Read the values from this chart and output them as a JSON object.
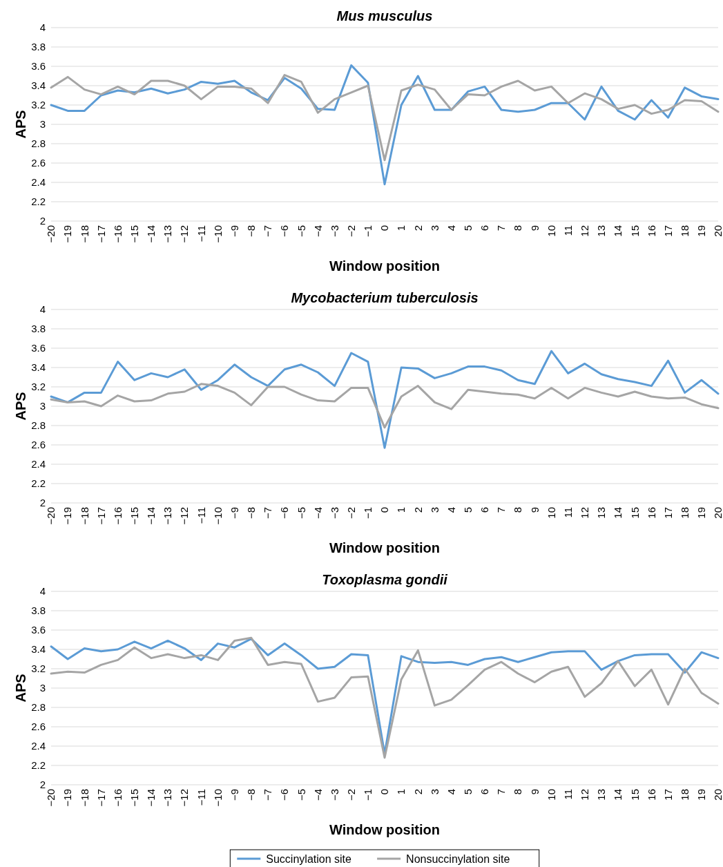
{
  "chart_data": [
    {
      "type": "line",
      "title": "Mus musculus",
      "xlabel": "Window position",
      "ylabel": "APS",
      "categories": [
        "−20",
        "−19",
        "−18",
        "−17",
        "−16",
        "−15",
        "−14",
        "−13",
        "−12",
        "−11",
        "−10",
        "−9",
        "−8",
        "−7",
        "−6",
        "−5",
        "−4",
        "−3",
        "−2",
        "−1",
        "0",
        "1",
        "2",
        "3",
        "4",
        "5",
        "6",
        "7",
        "8",
        "9",
        "10",
        "11",
        "12",
        "13",
        "14",
        "15",
        "16",
        "17",
        "18",
        "19",
        "20"
      ],
      "ylim": [
        2,
        4
      ],
      "yticks": [
        2,
        2.2,
        2.4,
        2.6,
        2.8,
        3,
        3.2,
        3.4,
        3.6,
        3.8,
        4
      ],
      "grid": "y",
      "series": [
        {
          "color": "#5b9bd5",
          "values": [
            3.2,
            3.14,
            3.14,
            3.3,
            3.35,
            3.33,
            3.37,
            3.32,
            3.36,
            3.44,
            3.42,
            3.45,
            3.33,
            3.25,
            3.48,
            3.37,
            3.16,
            3.15,
            3.61,
            3.43,
            2.38,
            3.2,
            3.5,
            3.15,
            3.15,
            3.34,
            3.39,
            3.15,
            3.13,
            3.15,
            3.22,
            3.22,
            3.05,
            3.39,
            3.14,
            3.05,
            3.25,
            3.07,
            3.38,
            3.29,
            3.26
          ]
        },
        {
          "color": "#a5a5a5",
          "values": [
            3.38,
            3.49,
            3.36,
            3.31,
            3.39,
            3.31,
            3.45,
            3.45,
            3.4,
            3.26,
            3.39,
            3.39,
            3.37,
            3.22,
            3.51,
            3.44,
            3.12,
            3.26,
            3.33,
            3.4,
            2.63,
            3.35,
            3.41,
            3.36,
            3.15,
            3.31,
            3.3,
            3.39,
            3.45,
            3.35,
            3.39,
            3.22,
            3.32,
            3.26,
            3.16,
            3.2,
            3.11,
            3.15,
            3.25,
            3.24,
            3.13
          ]
        }
      ]
    },
    {
      "type": "line",
      "title": "Mycobacterium tuberculosis",
      "xlabel": "Window position",
      "ylabel": "APS",
      "categories": [
        "−20",
        "−19",
        "−18",
        "−17",
        "−16",
        "−15",
        "−14",
        "−13",
        "−12",
        "−11",
        "−10",
        "−9",
        "−8",
        "−7",
        "−6",
        "−5",
        "−4",
        "−3",
        "−2",
        "−1",
        "0",
        "1",
        "2",
        "3",
        "4",
        "5",
        "6",
        "7",
        "8",
        "9",
        "10",
        "11",
        "12",
        "13",
        "14",
        "15",
        "16",
        "17",
        "18",
        "19",
        "20"
      ],
      "ylim": [
        2,
        4
      ],
      "yticks": [
        2,
        2.2,
        2.4,
        2.6,
        2.8,
        3,
        3.2,
        3.4,
        3.6,
        3.8,
        4
      ],
      "grid": "y",
      "series": [
        {
          "color": "#5b9bd5",
          "values": [
            3.1,
            3.04,
            3.14,
            3.14,
            3.46,
            3.27,
            3.34,
            3.3,
            3.38,
            3.17,
            3.27,
            3.43,
            3.3,
            3.21,
            3.38,
            3.43,
            3.35,
            3.21,
            3.55,
            3.46,
            2.57,
            3.4,
            3.39,
            3.29,
            3.34,
            3.41,
            3.41,
            3.37,
            3.27,
            3.23,
            3.57,
            3.34,
            3.44,
            3.33,
            3.28,
            3.25,
            3.21,
            3.47,
            3.14,
            3.27,
            3.13
          ]
        },
        {
          "color": "#a5a5a5",
          "values": [
            3.07,
            3.04,
            3.05,
            3.0,
            3.11,
            3.05,
            3.06,
            3.13,
            3.15,
            3.23,
            3.21,
            3.14,
            3.01,
            3.2,
            3.2,
            3.12,
            3.06,
            3.05,
            3.19,
            3.19,
            2.78,
            3.1,
            3.21,
            3.04,
            2.97,
            3.17,
            3.15,
            3.13,
            3.12,
            3.08,
            3.19,
            3.08,
            3.19,
            3.14,
            3.1,
            3.15,
            3.1,
            3.08,
            3.09,
            3.02,
            2.98
          ]
        }
      ]
    },
    {
      "type": "line",
      "title": "Toxoplasma gondii",
      "xlabel": "Window position",
      "ylabel": "APS",
      "categories": [
        "−20",
        "−19",
        "−18",
        "−17",
        "−16",
        "−15",
        "−14",
        "−13",
        "−12",
        "−11",
        "−10",
        "−9",
        "−8",
        "−7",
        "−6",
        "−5",
        "−4",
        "−3",
        "−2",
        "−1",
        "0",
        "1",
        "2",
        "3",
        "4",
        "5",
        "6",
        "7",
        "8",
        "9",
        "10",
        "11",
        "12",
        "13",
        "14",
        "15",
        "16",
        "17",
        "18",
        "19",
        "20"
      ],
      "ylim": [
        2,
        4
      ],
      "yticks": [
        2,
        2.2,
        2.4,
        2.6,
        2.8,
        3,
        3.2,
        3.4,
        3.6,
        3.8,
        4
      ],
      "grid": "y",
      "legend": "bottom",
      "series": [
        {
          "name": "Succinylation site",
          "color": "#5b9bd5",
          "values": [
            3.43,
            3.3,
            3.41,
            3.38,
            3.4,
            3.48,
            3.41,
            3.49,
            3.41,
            3.29,
            3.46,
            3.42,
            3.51,
            3.34,
            3.46,
            3.34,
            3.2,
            3.22,
            3.35,
            3.34,
            2.32,
            3.33,
            3.27,
            3.26,
            3.27,
            3.24,
            3.3,
            3.32,
            3.27,
            3.32,
            3.37,
            3.38,
            3.38,
            3.19,
            3.28,
            3.34,
            3.35,
            3.35,
            3.16,
            3.37,
            3.31
          ]
        },
        {
          "name": "Nonsuccinylation site",
          "color": "#a5a5a5",
          "values": [
            3.15,
            3.17,
            3.16,
            3.24,
            3.29,
            3.42,
            3.31,
            3.35,
            3.31,
            3.34,
            3.29,
            3.49,
            3.52,
            3.24,
            3.27,
            3.25,
            2.86,
            2.9,
            3.11,
            3.12,
            2.28,
            3.09,
            3.39,
            2.82,
            2.88,
            3.03,
            3.19,
            3.27,
            3.15,
            3.06,
            3.17,
            3.22,
            2.91,
            3.05,
            3.28,
            3.02,
            3.19,
            2.83,
            3.2,
            2.95,
            2.84
          ]
        }
      ]
    }
  ]
}
